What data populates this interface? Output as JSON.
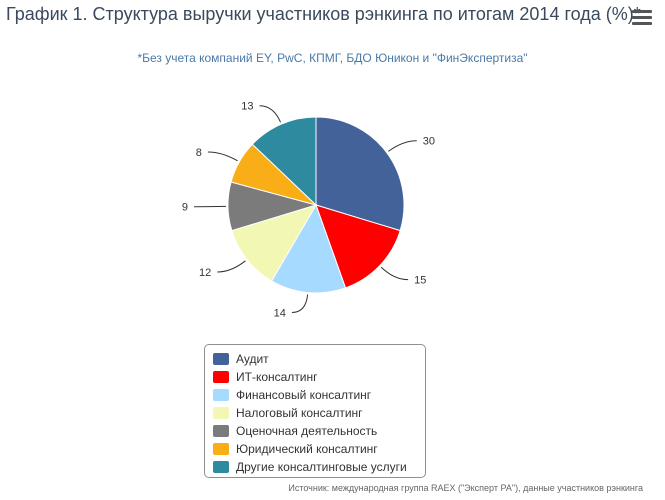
{
  "header": {
    "title": "График 1. Структура выручки участников рэнкинга по итогам 2014 года (%)*",
    "menu_icon": "hamburger-menu-icon"
  },
  "chart_data": {
    "type": "pie",
    "title": "График 1. Структура выручки участников рэнкинга по итогам 2014 года (%)*",
    "subtitle": "*Без учета компаний EY, PwC, КПМГ, БДО Юникон и \"ФинЭкспертиза\"",
    "legend_position": "bottom",
    "series": [
      {
        "name": "Аудит",
        "value": 30,
        "label": "30",
        "color": "#43629a"
      },
      {
        "name": "ИТ-консалтинг",
        "value": 15,
        "label": "15",
        "color": "#fe0000"
      },
      {
        "name": "Финансовый консалтинг",
        "value": 14,
        "label": "14",
        "color": "#a6daff"
      },
      {
        "name": "Налоговый консалтинг",
        "value": 12,
        "label": "12",
        "color": "#f2f7b3"
      },
      {
        "name": "Оценочная деятельность",
        "value": 9,
        "label": "9",
        "color": "#7b7b7b"
      },
      {
        "name": "Юридический консалтинг",
        "value": 8,
        "label": "8",
        "color": "#f9ad17"
      },
      {
        "name": "Другие консалтинговые услуги",
        "value": 13,
        "label": "13",
        "color": "#2e8a9e"
      }
    ]
  },
  "footer": {
    "source": "Источник: международная группа RAEX (\"Эксперт РА\"), данные участников рэнкинга"
  }
}
